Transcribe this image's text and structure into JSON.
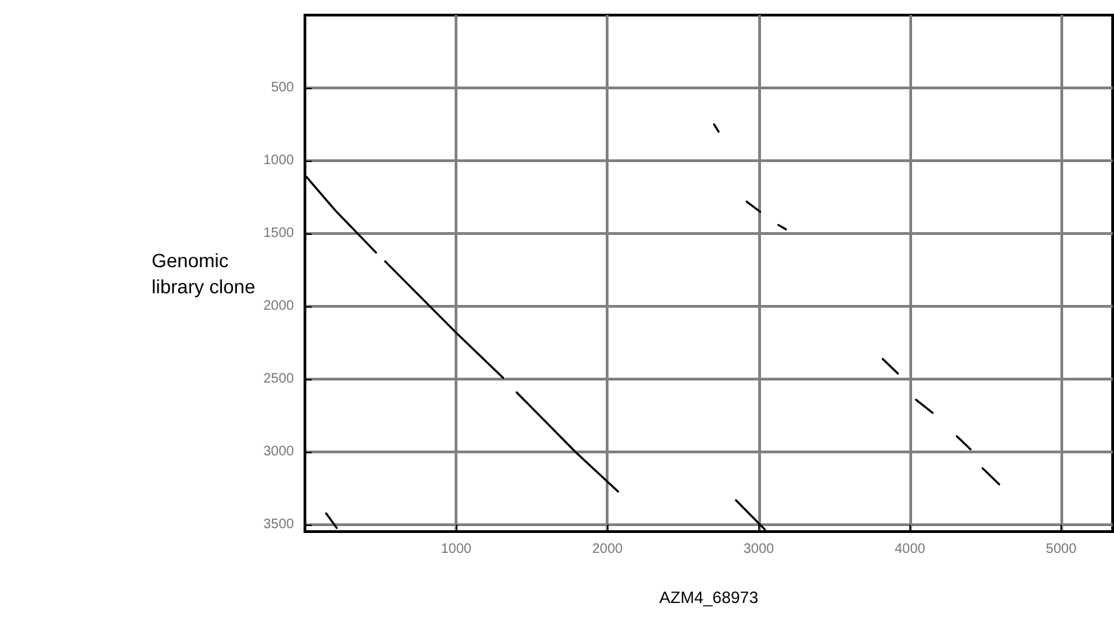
{
  "chart_data": {
    "type": "line",
    "xlabel": "AZM4_68973",
    "ylabel": "Genomic library clone",
    "xlim": [
      0,
      5340
    ],
    "ylim": [
      3545,
      0
    ],
    "xticks": [
      1000,
      2000,
      3000,
      4000,
      5000
    ],
    "yticks": [
      500,
      1000,
      1500,
      2000,
      2500,
      3000,
      3500
    ],
    "grid": true,
    "marker": "none",
    "line_style": "solid",
    "series": [
      {
        "color": "#000000",
        "x": [
          10,
          200,
          470
        ],
        "values": [
          1110,
          1340,
          1630
        ]
      },
      {
        "color": "#000000",
        "x": [
          530,
          1000,
          1310
        ],
        "values": [
          1690,
          2180,
          2490
        ]
      },
      {
        "color": "#000000",
        "x": [
          1400,
          1790,
          2070
        ],
        "values": [
          2590,
          3000,
          3270
        ]
      },
      {
        "color": "#000000",
        "x": [
          2705,
          2735
        ],
        "values": [
          750,
          800
        ]
      },
      {
        "color": "#000000",
        "x": [
          2920,
          3010
        ],
        "values": [
          1280,
          1350
        ]
      },
      {
        "color": "#000000",
        "x": [
          3130,
          3180
        ],
        "values": [
          1440,
          1470
        ]
      },
      {
        "color": "#000000",
        "x": [
          2850,
          3040
        ],
        "values": [
          3330,
          3530
        ]
      },
      {
        "color": "#000000",
        "x": [
          140,
          210
        ],
        "values": [
          3420,
          3520
        ]
      },
      {
        "color": "#000000",
        "x": [
          3820,
          3920
        ],
        "values": [
          2360,
          2460
        ]
      },
      {
        "color": "#000000",
        "x": [
          4040,
          4150
        ],
        "values": [
          2640,
          2730
        ]
      },
      {
        "color": "#000000",
        "x": [
          4310,
          4400
        ],
        "values": [
          2890,
          2980
        ]
      },
      {
        "color": "#000000",
        "x": [
          4480,
          4590
        ],
        "values": [
          3110,
          3220
        ]
      }
    ]
  }
}
